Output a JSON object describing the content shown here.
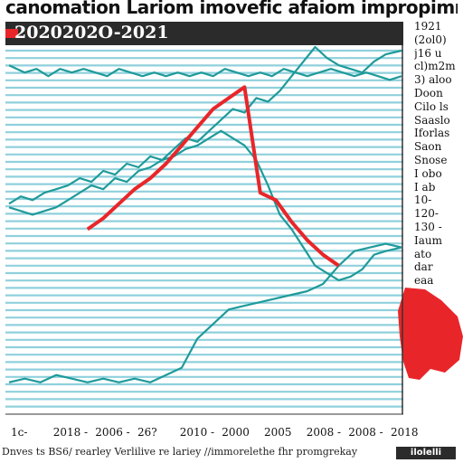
{
  "header": {
    "title": "canomation Lariom imovefic afaiom impropimnat",
    "banner": "2020202O-2021"
  },
  "legend": {
    "items": [
      "1921",
      "(2ol0)",
      "j16 u",
      "cl)m2m",
      "3) aloo",
      "Doon",
      "Cilo ls",
      "Saaslo",
      "Iforlas",
      "Saon",
      "Snose",
      "I obo",
      "I ab",
      "10-",
      "120-",
      "130 -",
      "Iaum",
      "ato",
      "dar",
      "eaa"
    ]
  },
  "footer": {
    "caption": "Dnves ts BS6/ rearley Verlilive re lariey //immorelethe fhr promgrekay",
    "badge": "ilolelli"
  },
  "colors": {
    "teal": "#1f9a9a",
    "red": "#e8262a",
    "grid": "#8fd0dc",
    "banner": "#2b2b2b"
  },
  "chart_data": {
    "type": "line",
    "title": "canomation Lariom imovefic afaiom impropimnat",
    "xlabel": "",
    "ylabel": "",
    "x_tick_labels": [
      "1ᴄ-",
      "2018 -",
      "2006 -",
      "26?",
      "2010 -",
      "2000",
      "2005",
      "2008 -",
      "2008 -",
      "2018"
    ],
    "x_domain": [
      0,
      100
    ],
    "ylim": [
      0,
      100
    ],
    "grid": true,
    "legend_position": "right",
    "series": [
      {
        "color": "#1f9a9a",
        "x": [
          0,
          4,
          7,
          10,
          13,
          16,
          19,
          22,
          25,
          28,
          31,
          34,
          37,
          40,
          43,
          46,
          49,
          52,
          55,
          58,
          61,
          64,
          67,
          70,
          73,
          76,
          79,
          82,
          85,
          88,
          91,
          94,
          97,
          100
        ],
        "values": [
          95,
          93,
          94,
          92,
          94,
          93,
          94,
          93,
          92,
          94,
          93,
          92,
          93,
          92,
          93,
          92,
          93,
          92,
          94,
          93,
          92,
          93,
          92,
          94,
          93,
          92,
          93,
          94,
          93,
          92,
          93,
          92,
          91,
          92
        ]
      },
      {
        "color": "#1f9a9a",
        "x": [
          0,
          3,
          6,
          9,
          12,
          15,
          18,
          21,
          24,
          27,
          30,
          33,
          36,
          39,
          42,
          45,
          48,
          51,
          54,
          57,
          60,
          63,
          66,
          69,
          72,
          75,
          78,
          81,
          84,
          87,
          90,
          93,
          96,
          100
        ],
        "values": [
          57,
          59,
          58,
          60,
          61,
          62,
          64,
          63,
          66,
          65,
          68,
          67,
          70,
          69,
          72,
          75,
          74,
          77,
          80,
          83,
          82,
          86,
          85,
          88,
          92,
          96,
          100,
          97,
          95,
          94,
          93,
          96,
          98,
          99
        ]
      },
      {
        "color": "#1f9a9a",
        "x": [
          0,
          3,
          6,
          9,
          12,
          15,
          18,
          21,
          24,
          27,
          30,
          33,
          36,
          39,
          42,
          45,
          48,
          51,
          54,
          57,
          60,
          63,
          66,
          69,
          72,
          75,
          78,
          81,
          84,
          87,
          90,
          93,
          96,
          100
        ],
        "values": [
          56,
          55,
          54,
          55,
          56,
          58,
          60,
          62,
          61,
          64,
          63,
          66,
          67,
          69,
          70,
          72,
          73,
          75,
          77,
          75,
          73,
          69,
          62,
          54,
          50,
          45,
          40,
          38,
          36,
          37,
          39,
          43,
          44,
          45
        ]
      },
      {
        "color": "#1f9a9a",
        "x": [
          0,
          4,
          8,
          12,
          16,
          20,
          24,
          28,
          32,
          36,
          40,
          44,
          48,
          52,
          56,
          60,
          64,
          68,
          72,
          76,
          80,
          84,
          88,
          92,
          96,
          100
        ],
        "values": [
          8,
          9,
          8,
          10,
          9,
          8,
          9,
          8,
          9,
          8,
          10,
          12,
          20,
          24,
          28,
          29,
          30,
          31,
          32,
          33,
          35,
          40,
          44,
          45,
          46,
          45
        ]
      },
      {
        "color": "#e8262a",
        "x": [
          20,
          24,
          28,
          32,
          36,
          40,
          44,
          48,
          52,
          56,
          60,
          64,
          68,
          72,
          76,
          80,
          84
        ],
        "values": [
          50,
          53,
          57,
          61,
          64,
          68,
          73,
          78,
          83,
          86,
          89,
          60,
          58,
          52,
          47,
          43,
          40
        ]
      }
    ]
  }
}
